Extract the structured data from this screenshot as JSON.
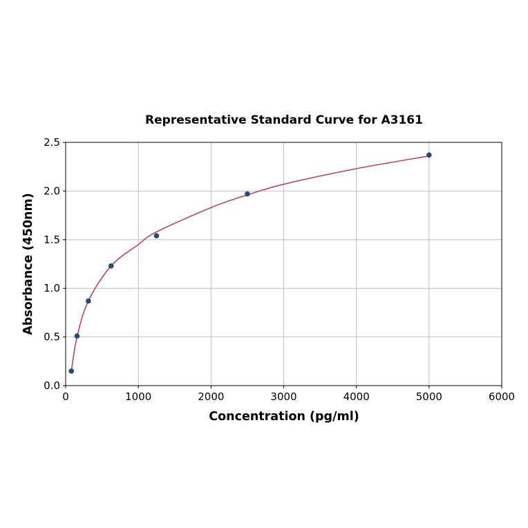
{
  "chart_data": {
    "type": "scatter",
    "title": "Representative Standard Curve for A3161",
    "xlabel": "Concentration (pg/ml)",
    "ylabel": "Absorbance (450nm)",
    "xlim": [
      0,
      6000
    ],
    "ylim": [
      0,
      2.5
    ],
    "xticks": [
      "0",
      "1000",
      "2000",
      "3000",
      "4000",
      "5000",
      "6000"
    ],
    "yticks": [
      "0.0",
      "0.5",
      "1.0",
      "1.5",
      "2.0",
      "2.5"
    ],
    "grid": true,
    "points": {
      "x": [
        78.125,
        156.25,
        312.5,
        625,
        1250,
        2500,
        5000
      ],
      "y": [
        0.15,
        0.51,
        0.87,
        1.23,
        1.54,
        1.97,
        2.37
      ]
    },
    "fit_curve": {
      "x": [
        78,
        156,
        312,
        625,
        1000,
        1250,
        2000,
        2500,
        3000,
        4000,
        5000
      ],
      "y": [
        0.15,
        0.5,
        0.87,
        1.23,
        1.45,
        1.58,
        1.83,
        1.96,
        2.07,
        2.23,
        2.36
      ]
    },
    "colors": {
      "points": "#2b4a6e",
      "curve": "#b5476a"
    }
  }
}
